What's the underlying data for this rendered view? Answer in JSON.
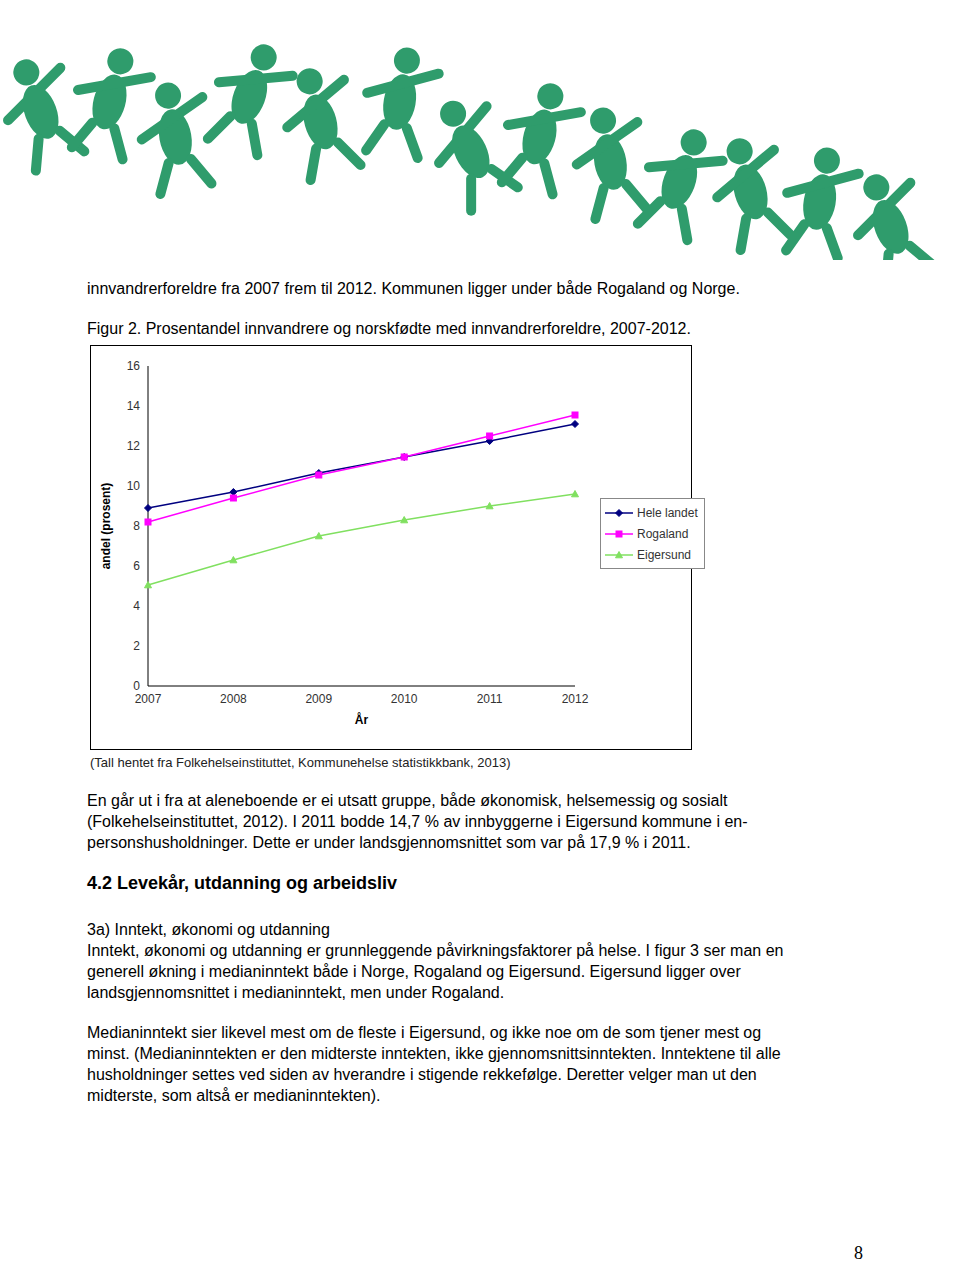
{
  "intro": "innvandrerforeldre fra 2007 frem til 2012. Kommunen ligger under både Rogaland og Norge.",
  "figure_caption": "Figur 2. Prosentandel innvandrere og norskfødte med innvandrerforeldre, 2007-2012.",
  "chart_data": {
    "type": "line",
    "x_label": "År",
    "y_label": "andel (prosent)",
    "categories": [
      "2007",
      "2008",
      "2009",
      "2010",
      "2011",
      "2012"
    ],
    "series": [
      {
        "name": "Hele landet",
        "color": "#000080",
        "marker": "diamond",
        "values": [
          8.9,
          9.7,
          10.65,
          11.45,
          12.25,
          13.1
        ]
      },
      {
        "name": "Rogaland",
        "color": "#ff00ff",
        "marker": "square",
        "values": [
          8.2,
          9.4,
          10.55,
          11.45,
          12.5,
          13.55
        ]
      },
      {
        "name": "Eigersund",
        "color": "#80e060",
        "marker": "triangle",
        "values": [
          5.05,
          6.3,
          7.5,
          8.3,
          9.0,
          9.6
        ]
      }
    ],
    "ylim": [
      0,
      16
    ],
    "yticks": [
      0,
      2,
      4,
      6,
      8,
      10,
      12,
      14,
      16
    ],
    "grid": false,
    "legend": "right"
  },
  "source": "(Tall hentet fra Folkehelseinstituttet, Kommunehelse statistikkbank, 2013)",
  "paragraph_1": [
    "En går ut i fra at aleneboende er ei utsatt gruppe, både økonomisk, helsemessig og sosialt",
    "(Folkehelseinstituttet, 2012). I 2011 bodde 14,7 % av innbyggerne i Eigersund kommune i en-",
    "personshusholdninger. Dette er under landsgjennomsnittet som var på 17,9 % i 2011."
  ],
  "heading": "4.2 Levekår, utdanning og arbeidsliv",
  "subheading": "3a) Inntekt, økonomi og utdanning",
  "paragraph_2": [
    "Inntekt, økonomi og utdanning er grunnleggende påvirkningsfaktorer på helse. I figur 3 ser man en",
    "generell økning i medianinntekt både i Norge, Rogaland og Eigersund. Eigersund ligger over",
    "landsgjennomsnittet i medianinntekt, men under Rogaland."
  ],
  "paragraph_3": [
    "Medianinntekt sier likevel mest om de fleste i Eigersund, og ikke noe om de som tjener mest og",
    "minst. (Medianinntekten er den midterste inntekten, ikke gjennomsnittsinntekten. Inntektene til alle",
    "husholdninger settes ved siden av hverandre i stigende rekkefølge. Deretter velger man ut den",
    "midterste, som altså er medianinntekten)."
  ],
  "page_number": "8"
}
